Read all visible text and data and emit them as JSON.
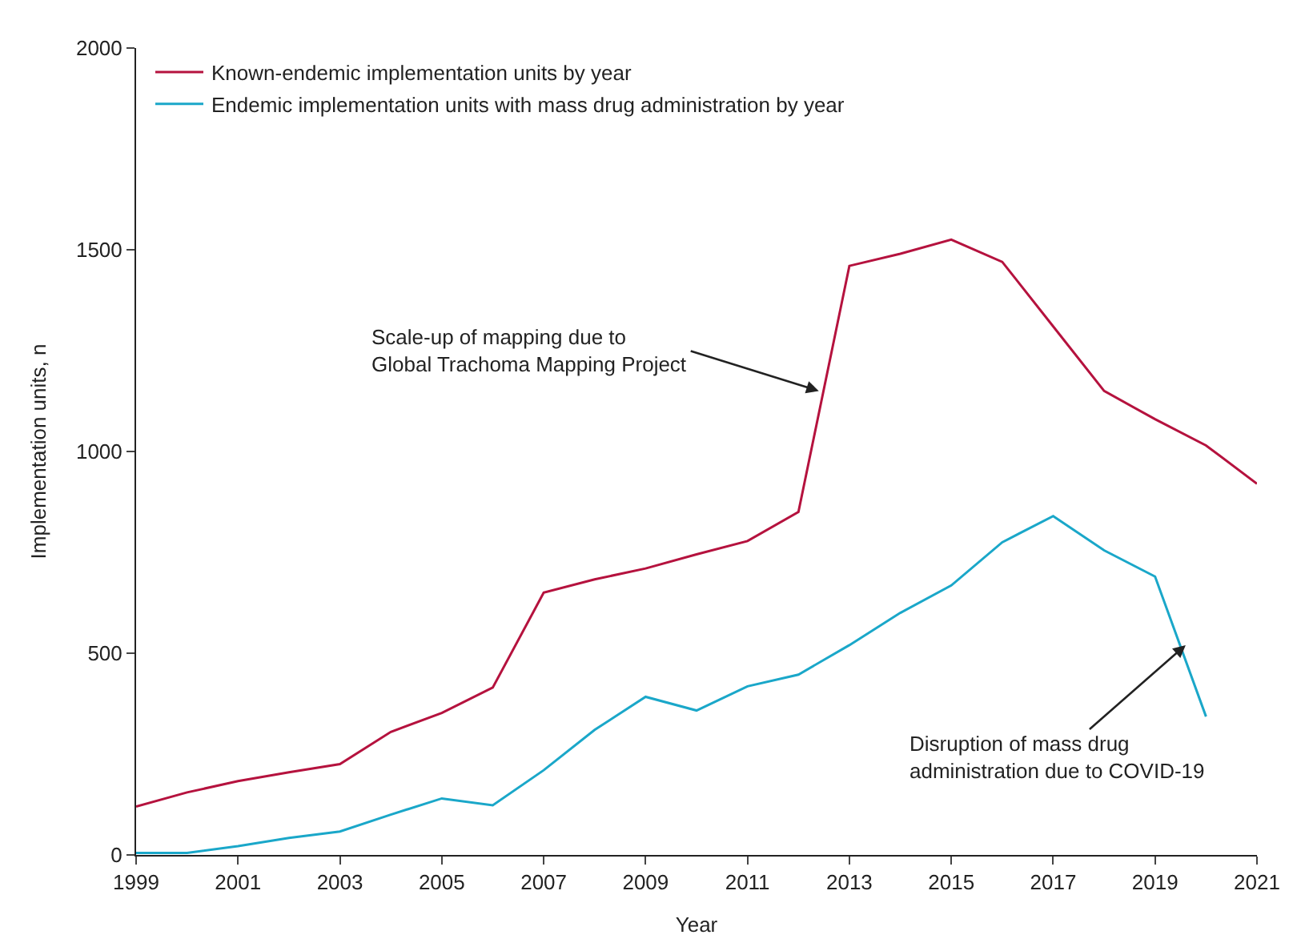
{
  "chart_data": {
    "type": "line",
    "xlabel": "Year",
    "ylabel": "Implementation units, n",
    "x": [
      1999,
      2000,
      2001,
      2002,
      2003,
      2004,
      2005,
      2006,
      2007,
      2008,
      2009,
      2010,
      2011,
      2012,
      2013,
      2014,
      2015,
      2016,
      2017,
      2018,
      2019,
      2020,
      2021
    ],
    "series": [
      {
        "name": "Known-endemic implementation units by year",
        "color": "#b5123e",
        "values": [
          120,
          155,
          183,
          205,
          225,
          305,
          352,
          415,
          650,
          683,
          710,
          745,
          778,
          850,
          1460,
          1490,
          1525,
          1470,
          1310,
          1150,
          1080,
          1015,
          920
        ]
      },
      {
        "name": "Endemic implementation units with mass drug administration by year",
        "color": "#1aa7c9",
        "values": [
          5,
          5,
          22,
          42,
          58,
          100,
          140,
          123,
          210,
          310,
          392,
          358,
          418,
          447,
          520,
          600,
          668,
          775,
          840,
          755,
          690,
          343,
          null
        ]
      }
    ],
    "xlim": [
      1999,
      2021
    ],
    "xticks": [
      1999,
      2001,
      2003,
      2005,
      2007,
      2009,
      2011,
      2013,
      2015,
      2017,
      2019,
      2021
    ],
    "ylim": [
      0,
      2000
    ],
    "yticks": [
      0,
      500,
      1000,
      1500,
      2000
    ],
    "legend": "top left",
    "marker": "none",
    "line_style": "solid",
    "annotations": [
      {
        "text": "Scale-up of mapping due to\nGlobal Trachoma Mapping Project",
        "x": 2012.4,
        "y": 1150
      },
      {
        "text": "Disruption of mass drug\nadministration due to COVID-19",
        "x": 2019.6,
        "y": 520
      }
    ]
  }
}
